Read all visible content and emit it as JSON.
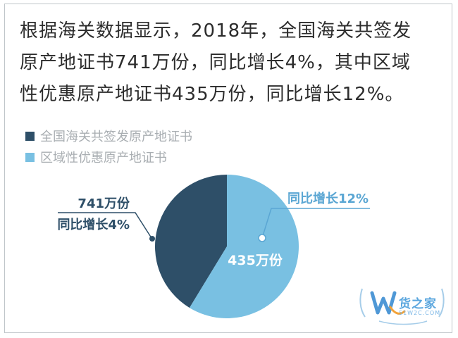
{
  "headline": {
    "line1": "根据海关数据显示，2018年，全国海关共签发",
    "line2": "原产地证书741万份，同比增长4%，其中区域",
    "line3": "性优惠原产地证书435万份，同比增长12%。"
  },
  "colors": {
    "dark": "#2e4f68",
    "light": "#79c0e2",
    "label_text": "#2e4f68",
    "light_label_text": "#5aa6d3"
  },
  "chart_data": {
    "type": "pie",
    "slices": [
      {
        "label": "全国海关共签发原产地证书",
        "value": 306,
        "color": "#2e4f68"
      },
      {
        "label": "区域性优惠原产地证书",
        "value": 435,
        "color": "#79c0e2"
      }
    ],
    "total": 741,
    "legend": [
      "全国海关共签发原产地证书",
      "区域性优惠原产地证书"
    ],
    "annotations": {
      "total_value": "741万份",
      "total_growth": "同比增长4%",
      "regional_growth": "同比增长12%",
      "regional_value": "435万份"
    }
  },
  "watermark": {
    "text": "货之家",
    "sub": "51W2C.COM"
  }
}
